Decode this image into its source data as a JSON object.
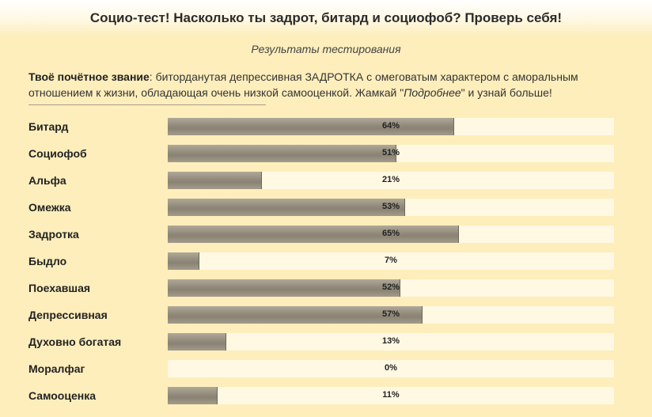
{
  "header": {
    "title": "Социо-тест! Насколько ты задрот, битард и социофоб? Проверь себя!"
  },
  "subtitle": "Результаты тестирования",
  "rank": {
    "label": "Твоё почётное звание",
    "text_before": ": битордanутая депрессивная ЗАДРОТКА с омеговатым характером с аморальным отношением к жизни, обладающая очень низкой самооценкой. Жамкай \"",
    "link": "Подробнее",
    "text_after": "\" и узнай больше!"
  },
  "results": [
    {
      "label": "Битард",
      "value": 64,
      "text": "64%"
    },
    {
      "label": "Социофоб",
      "value": 51,
      "text": "51%"
    },
    {
      "label": "Альфа",
      "value": 21,
      "text": "21%"
    },
    {
      "label": "Омежка",
      "value": 53,
      "text": "53%"
    },
    {
      "label": "Задротка",
      "value": 65,
      "text": "65%"
    },
    {
      "label": "Быдло",
      "value": 7,
      "text": "7%"
    },
    {
      "label": "Поехавшая",
      "value": 52,
      "text": "52%"
    },
    {
      "label": "Депрессивная",
      "value": 57,
      "text": "57%"
    },
    {
      "label": "Духовно богатая",
      "value": 13,
      "text": "13%"
    },
    {
      "label": "Моралфаг",
      "value": 0,
      "text": "0%"
    },
    {
      "label": "Самооценка",
      "value": 11,
      "text": "11%"
    }
  ]
}
